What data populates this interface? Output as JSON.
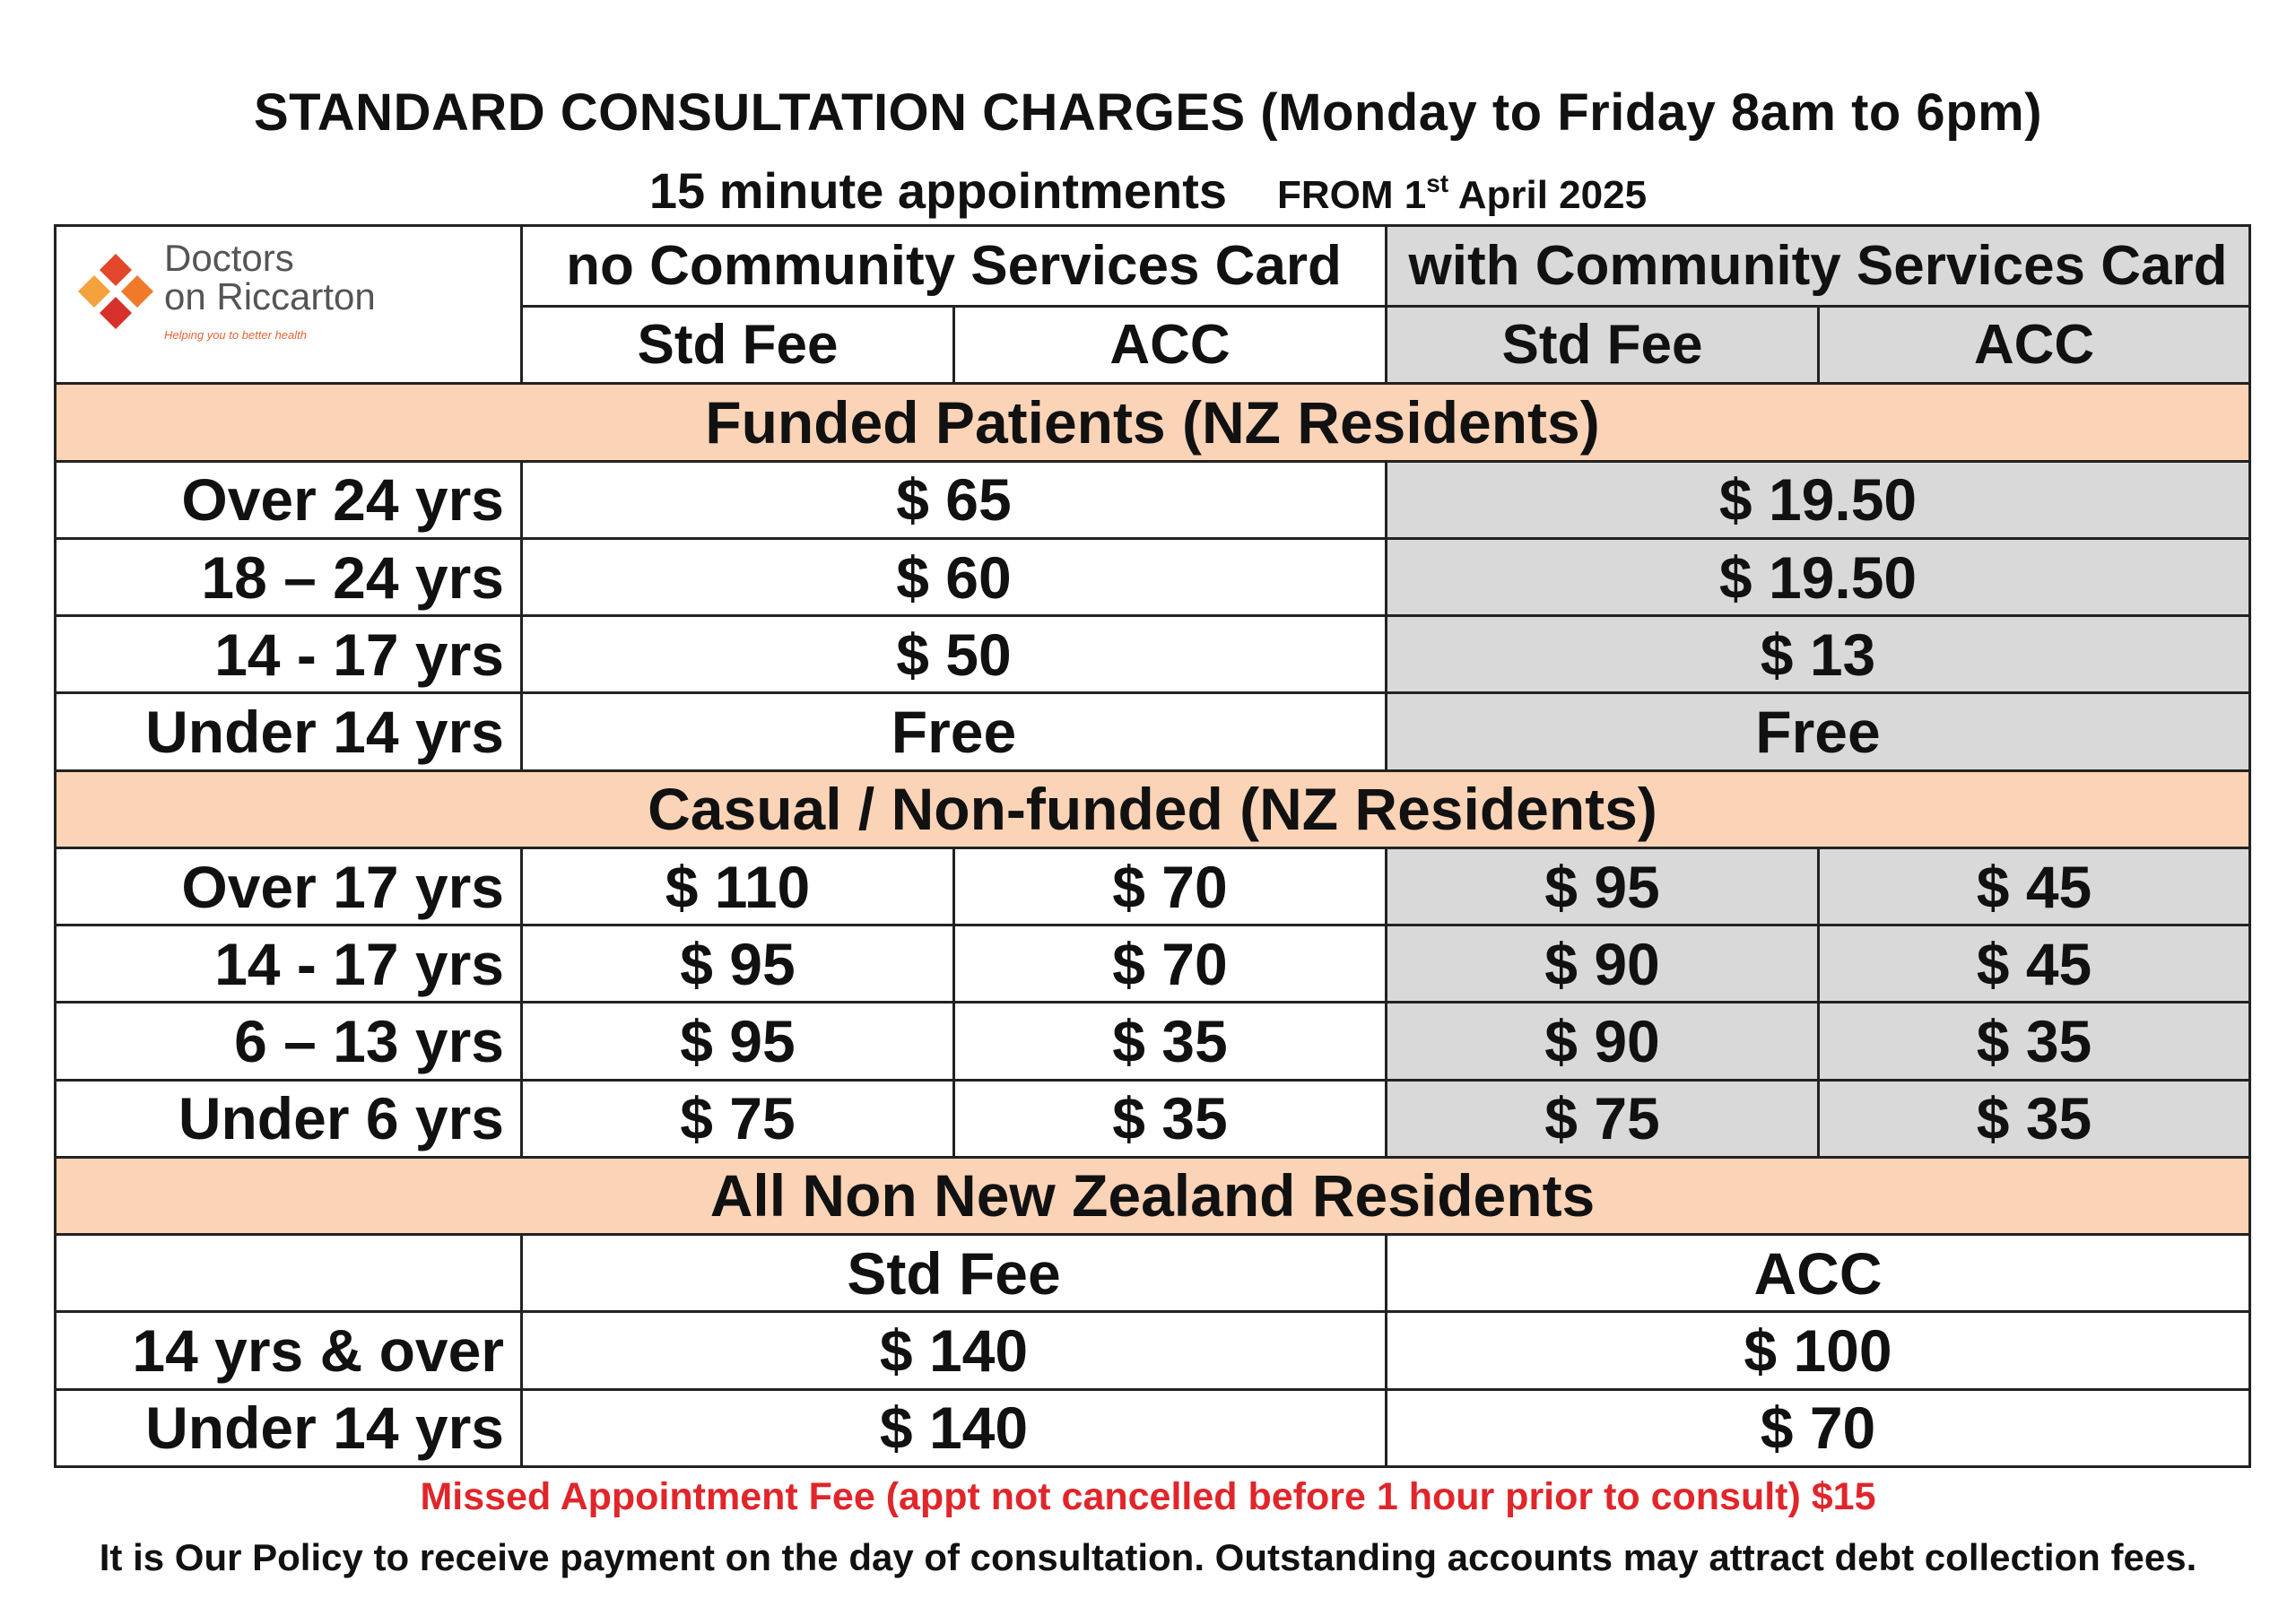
{
  "header": {
    "title": "STANDARD CONSULTATION CHARGES  (Monday to Friday 8am to 6pm)",
    "subtitle": "15 minute appointments",
    "from_prefix": "FROM 1",
    "from_sup": "st",
    "from_suffix": " April 2025"
  },
  "logo": {
    "line1": "Doctors",
    "line2": "on Riccarton",
    "tagline": "Helping you to better health",
    "colors": [
      "#e2462b",
      "#f07a2a",
      "#d6312a",
      "#f4a23b"
    ]
  },
  "columns": {
    "no_csc": "no Community Services Card",
    "with_csc": "with Community Services Card",
    "std_fee": "Std Fee",
    "acc": "ACC"
  },
  "funded": {
    "title": "Funded Patients (NZ Residents)",
    "rows": [
      {
        "label": "Over 24 yrs",
        "no_csc": "$ 65",
        "with_csc": "$ 19.50"
      },
      {
        "label": "18 – 24 yrs",
        "no_csc": "$ 60",
        "with_csc": "$ 19.50"
      },
      {
        "label": "14 - 17 yrs",
        "no_csc": "$ 50",
        "with_csc": "$ 13"
      },
      {
        "label": "Under 14 yrs",
        "no_csc": "Free",
        "with_csc": "Free"
      }
    ]
  },
  "casual": {
    "title": "Casual / Non-funded (NZ Residents)",
    "rows": [
      {
        "label": "Over 17 yrs",
        "std": "$ 110",
        "acc": "$ 70",
        "csc_std": "$ 95",
        "csc_acc": "$ 45"
      },
      {
        "label": "14 - 17 yrs",
        "std": "$ 95",
        "acc": "$ 70",
        "csc_std": "$ 90",
        "csc_acc": "$ 45"
      },
      {
        "label": "6 – 13  yrs",
        "std": "$ 95",
        "acc": "$ 35",
        "csc_std": "$ 90",
        "csc_acc": "$ 35"
      },
      {
        "label": "Under 6 yrs",
        "std": "$ 75",
        "acc": "$ 35",
        "csc_std": "$ 75",
        "csc_acc": "$ 35"
      }
    ]
  },
  "non_nz": {
    "title": "All Non New Zealand Residents",
    "std_fee": "Std Fee",
    "acc": "ACC",
    "rows": [
      {
        "label": "14 yrs & over",
        "std": "$ 140",
        "acc": "$ 100"
      },
      {
        "label": "Under 14 yrs",
        "std": "$ 140",
        "acc": "$ 70"
      }
    ]
  },
  "footer": {
    "missed": "Missed Appointment Fee (appt not cancelled before 1 hour prior to consult) $15",
    "policy": "It is Our Policy to receive payment on the day of consultation. Outstanding accounts may attract debt collection fees."
  }
}
